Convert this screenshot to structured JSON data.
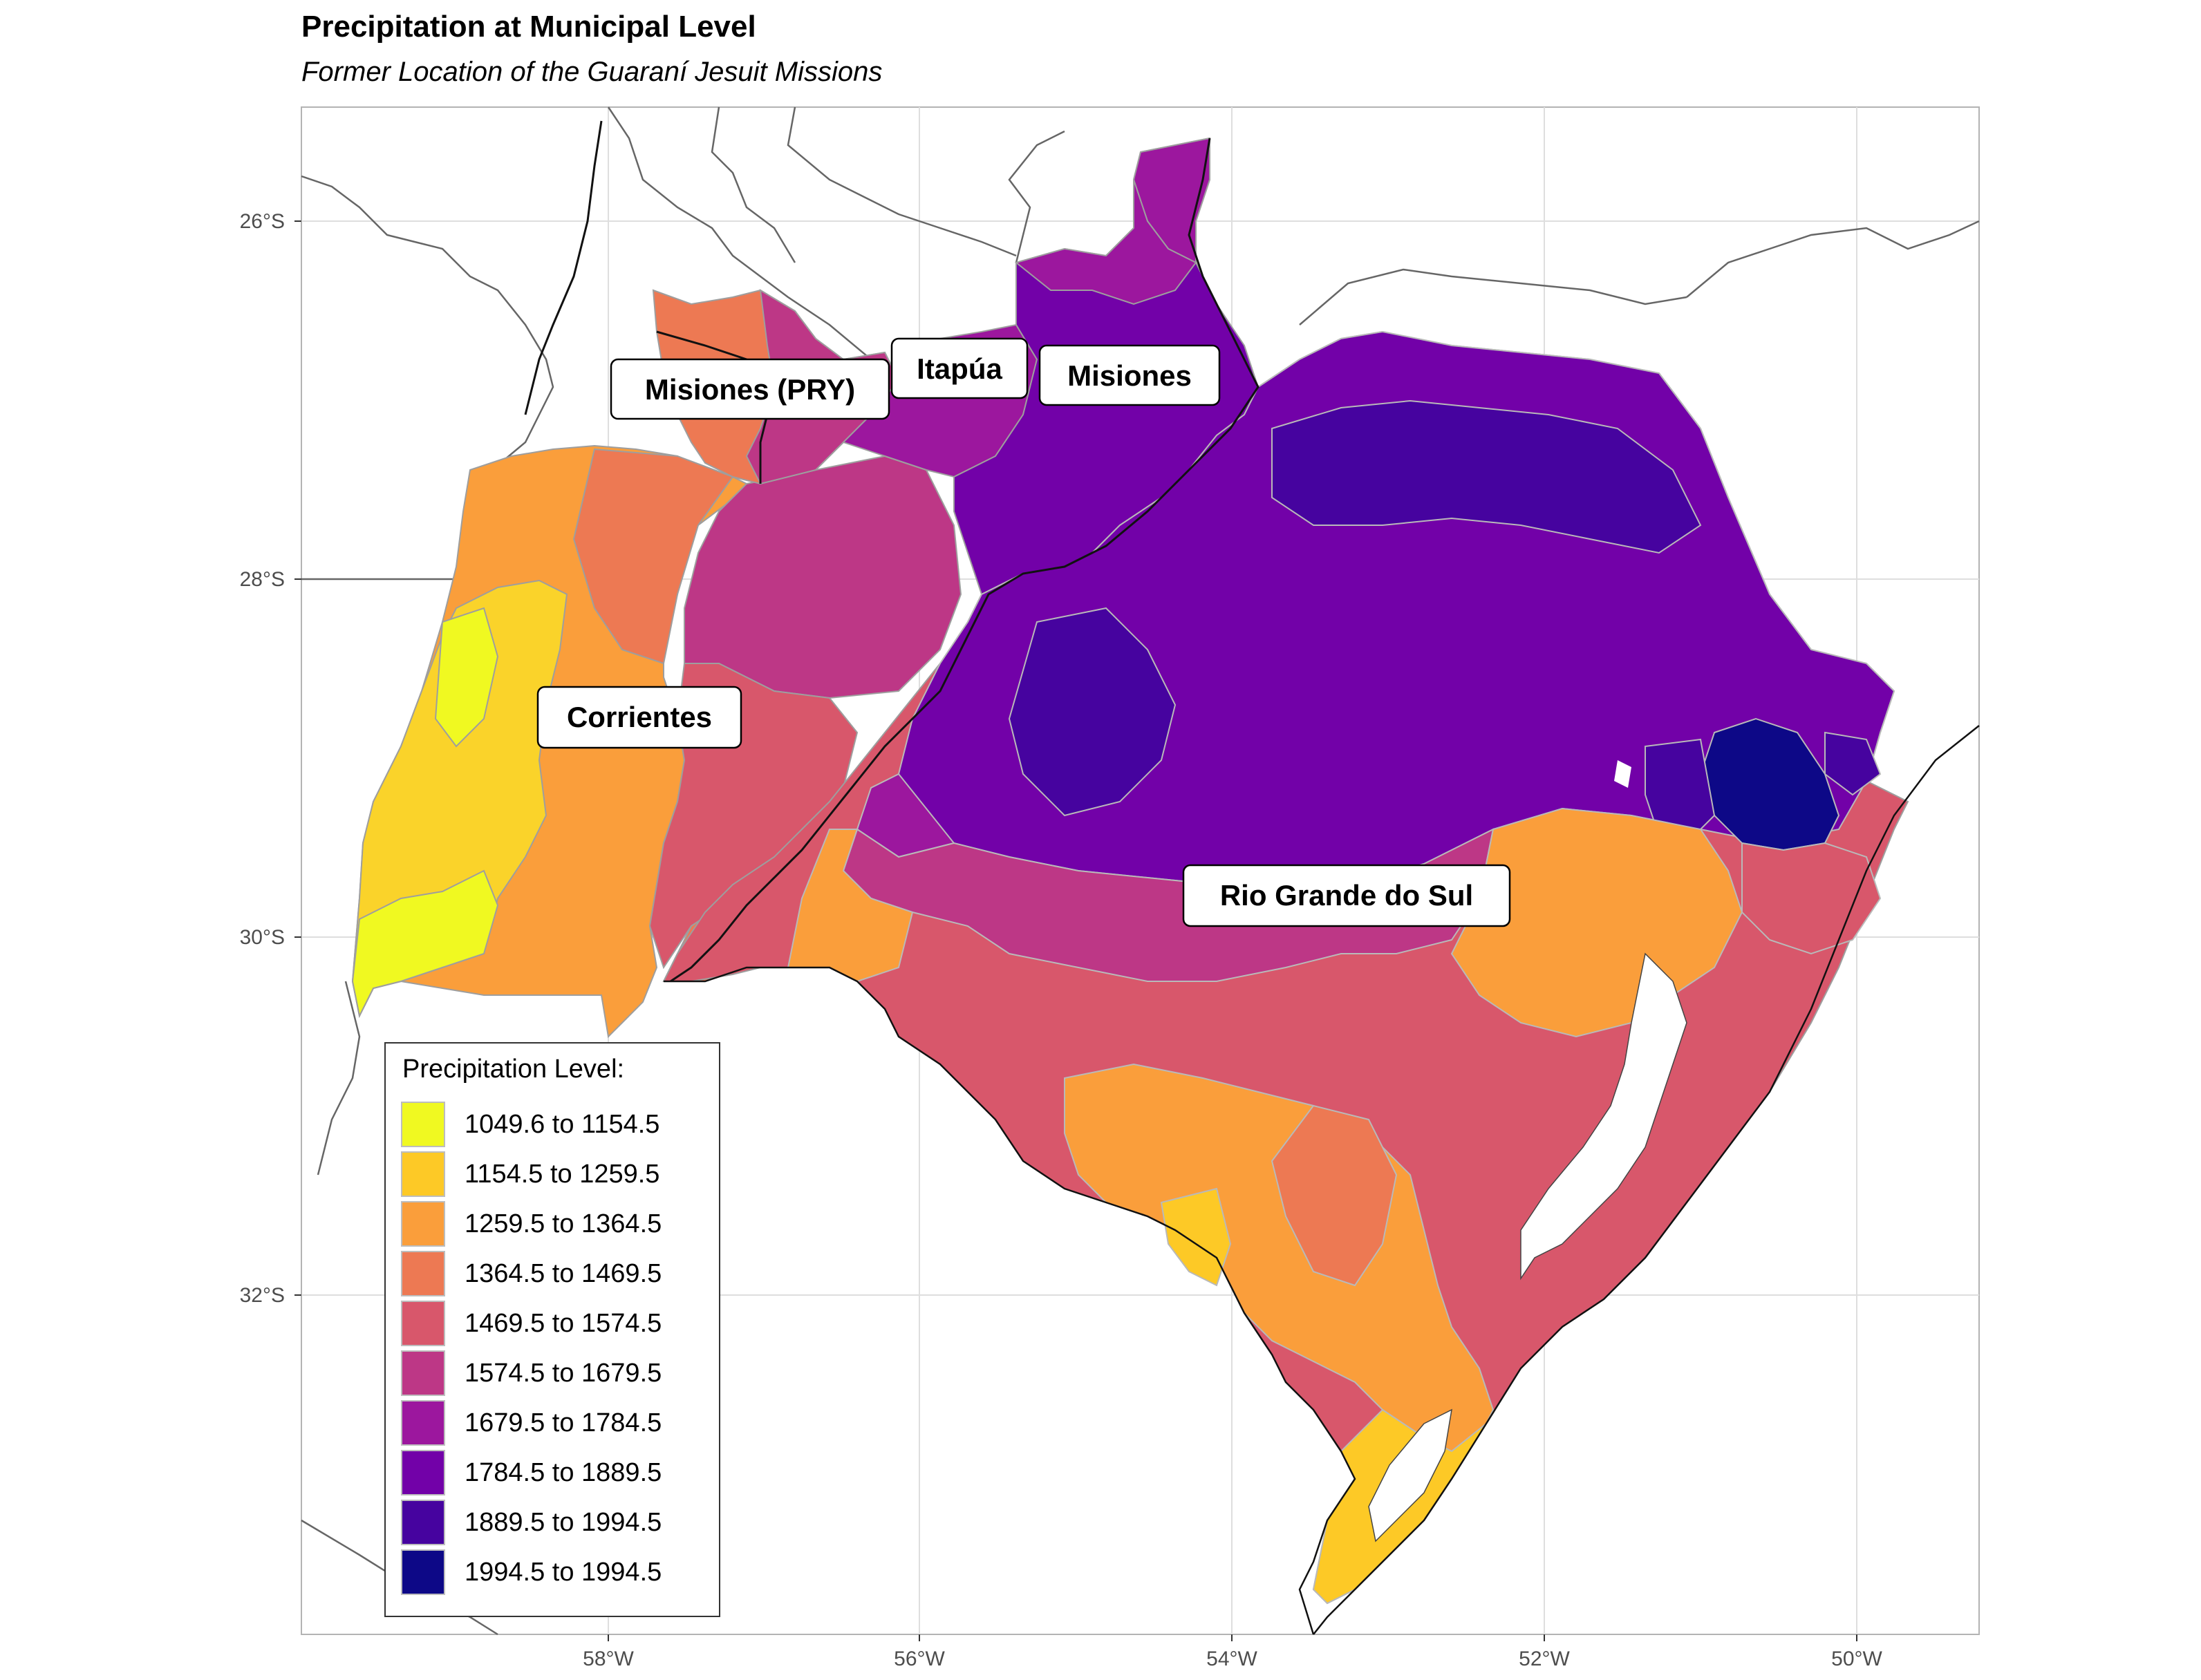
{
  "title": "Precipitation at Municipal Level",
  "subtitle": "Former Location of the Guaraní Jesuit Missions",
  "axes": {
    "x_ticks": [
      "58°W",
      "56°W",
      "54°W",
      "52°W",
      "50°W"
    ],
    "y_ticks": [
      "26°S",
      "28°S",
      "30°S",
      "32°S"
    ]
  },
  "region_labels": [
    {
      "id": "misiones-pry",
      "text": "Misiones (PRY)"
    },
    {
      "id": "itapua",
      "text": "Itapúa"
    },
    {
      "id": "misiones",
      "text": "Misiones"
    },
    {
      "id": "corrientes",
      "text": "Corrientes"
    },
    {
      "id": "rio-grande-do-sul",
      "text": "Rio Grande do Sul"
    }
  ],
  "legend": {
    "title": "Precipitation Level:",
    "items": [
      {
        "label": "1049.6 to 1154.5",
        "color": "#f0f921"
      },
      {
        "label": "1154.5 to 1259.5",
        "color": "#fdc926"
      },
      {
        "label": "1259.5 to 1364.5",
        "color": "#fa9e3b"
      },
      {
        "label": "1364.5 to 1469.5",
        "color": "#ed7953"
      },
      {
        "label": "1469.5 to 1574.5",
        "color": "#d8576b"
      },
      {
        "label": "1574.5 to 1679.5",
        "color": "#bd3786"
      },
      {
        "label": "1679.5 to 1784.5",
        "color": "#9c179e"
      },
      {
        "label": "1784.5 to 1889.5",
        "color": "#7201a8"
      },
      {
        "label": "1889.5 to 1994.5",
        "color": "#46039f"
      },
      {
        "label": "1994.5 to 1994.5",
        "color": "#0d0887"
      }
    ]
  }
}
